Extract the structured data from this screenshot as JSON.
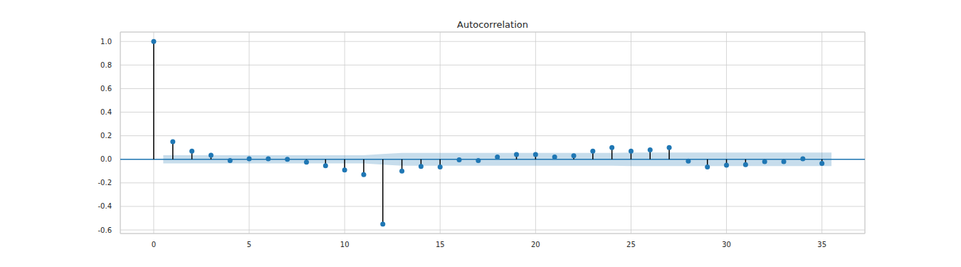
{
  "chart_data": {
    "type": "stem",
    "title": "Autocorrelation",
    "x": [
      0,
      1,
      2,
      3,
      4,
      5,
      6,
      7,
      8,
      9,
      10,
      11,
      12,
      13,
      14,
      15,
      16,
      17,
      18,
      19,
      20,
      21,
      22,
      23,
      24,
      25,
      26,
      27,
      28,
      29,
      30,
      31,
      32,
      33,
      34,
      35
    ],
    "values": [
      1.0,
      0.15,
      0.07,
      0.035,
      -0.01,
      0.005,
      0.005,
      0.0,
      -0.025,
      -0.055,
      -0.09,
      -0.13,
      -0.55,
      -0.1,
      -0.06,
      -0.065,
      -0.005,
      -0.01,
      0.02,
      0.04,
      0.04,
      0.02,
      0.03,
      0.07,
      0.1,
      0.07,
      0.08,
      0.1,
      -0.015,
      -0.065,
      -0.05,
      -0.045,
      -0.02,
      -0.02,
      0.005,
      -0.035
    ],
    "color": "#1f77b4",
    "marker": "o",
    "conf_band": {
      "x": [
        0.5,
        1,
        2,
        3,
        4,
        5,
        6,
        7,
        8,
        9,
        10,
        11,
        12,
        13,
        14,
        15,
        16,
        17,
        18,
        19,
        20,
        21,
        22,
        23,
        24,
        25,
        26,
        27,
        28,
        29,
        30,
        31,
        32,
        33,
        34,
        35,
        35.5
      ],
      "upper": [
        0.035,
        0.035,
        0.035,
        0.035,
        0.035,
        0.035,
        0.035,
        0.035,
        0.035,
        0.035,
        0.035,
        0.035,
        0.045,
        0.055,
        0.055,
        0.055,
        0.055,
        0.055,
        0.055,
        0.055,
        0.055,
        0.055,
        0.055,
        0.055,
        0.055,
        0.058,
        0.058,
        0.058,
        0.058,
        0.058,
        0.058,
        0.058,
        0.058,
        0.058,
        0.058,
        0.058,
        0.058
      ],
      "lower": [
        -0.035,
        -0.035,
        -0.035,
        -0.035,
        -0.035,
        -0.035,
        -0.035,
        -0.035,
        -0.035,
        -0.035,
        -0.035,
        -0.035,
        -0.045,
        -0.055,
        -0.055,
        -0.055,
        -0.055,
        -0.055,
        -0.055,
        -0.055,
        -0.055,
        -0.055,
        -0.055,
        -0.055,
        -0.055,
        -0.058,
        -0.058,
        -0.058,
        -0.058,
        -0.058,
        -0.058,
        -0.058,
        -0.058,
        -0.058,
        -0.058,
        -0.058,
        -0.058
      ]
    },
    "xlim": [
      -1.75,
      37.25
    ],
    "xticks": [
      0,
      5,
      10,
      15,
      20,
      25,
      30,
      35
    ],
    "ylim": [
      -0.63,
      1.08
    ],
    "yticks": [
      -0.6,
      -0.4,
      -0.2,
      {
        "value": 0,
        "label": "0.0"
      },
      0.2,
      0.4,
      0.6,
      0.8,
      {
        "value": 1,
        "label": "1.0"
      }
    ],
    "grid": true
  }
}
